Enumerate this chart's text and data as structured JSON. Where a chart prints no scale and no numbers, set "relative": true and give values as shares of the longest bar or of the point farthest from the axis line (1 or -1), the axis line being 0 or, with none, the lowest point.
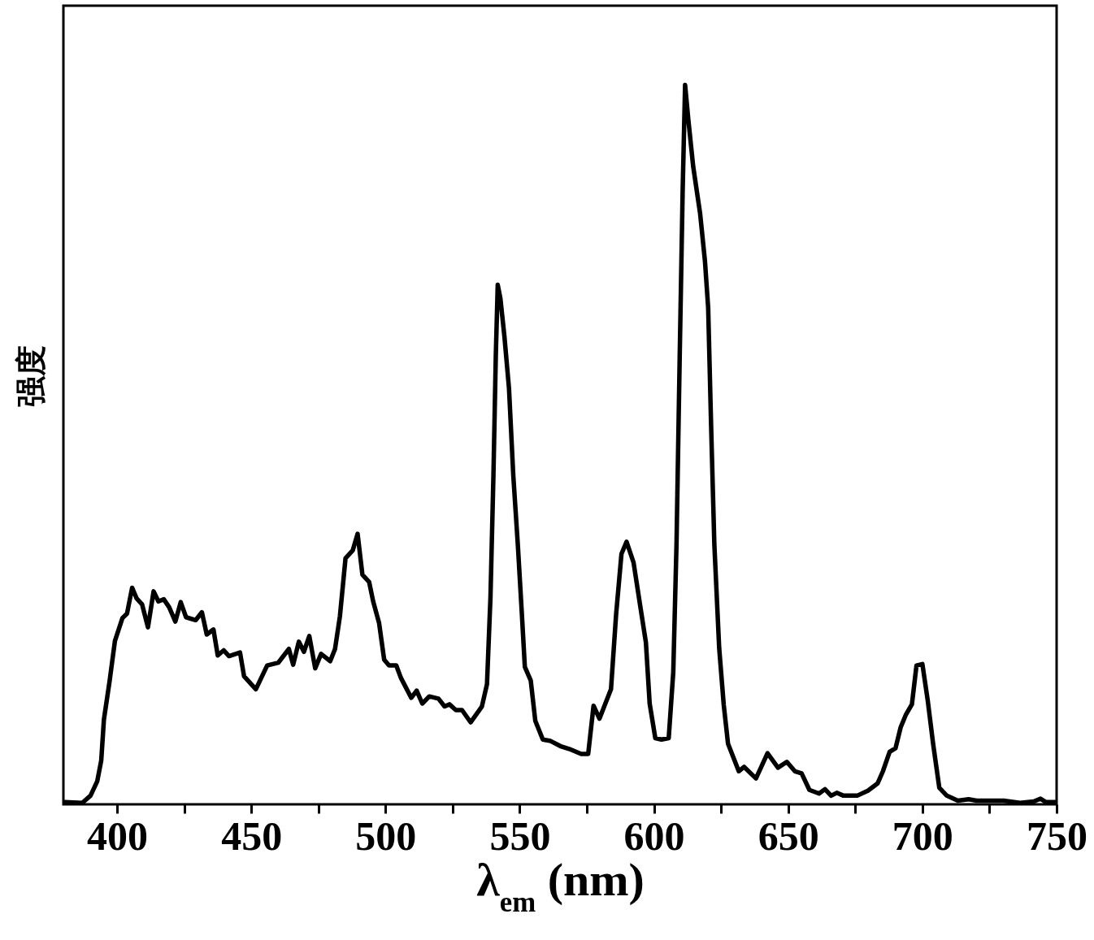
{
  "chart_data": {
    "type": "line",
    "xlabel": "λ$_{em}$ (nm)",
    "ylabel": "强度",
    "relative": true,
    "xlim": [
      380,
      750
    ],
    "xticks": [
      400,
      {
        "value": 425,
        "label": null
      },
      450,
      {
        "value": 475,
        "label": null
      },
      500,
      {
        "value": 525,
        "label": null
      },
      550,
      {
        "value": 575,
        "label": null
      },
      600,
      {
        "value": 625,
        "label": null
      },
      650,
      {
        "value": 675,
        "label": null
      },
      700,
      {
        "value": 725,
        "label": null
      },
      750
    ],
    "x": [
      380.5,
      387.0,
      390.1,
      392.6,
      394.1,
      395.1,
      397.2,
      399.2,
      402.0,
      403.7,
      405.6,
      407.3,
      409.3,
      411.5,
      413.6,
      415.4,
      417.4,
      419.4,
      421.7,
      423.7,
      425.7,
      429.3,
      431.6,
      433.4,
      435.9,
      437.5,
      439.7,
      441.7,
      445.8,
      447.3,
      451.7,
      455.9,
      460.1,
      464.0,
      465.6,
      467.7,
      469.6,
      471.6,
      473.8,
      476.0,
      479.4,
      481.2,
      483.0,
      485.1,
      487.8,
      489.6,
      491.4,
      493.9,
      495.4,
      497.6,
      499.5,
      501.3,
      504.0,
      505.7,
      509.6,
      511.6,
      513.7,
      516.3,
      519.7,
      522.0,
      523.8,
      526.2,
      528.5,
      531.7,
      535.9,
      537.8,
      539.1,
      540.2,
      541.1,
      541.8,
      542.8,
      544.3,
      546.0,
      547.6,
      549.3,
      550.8,
      551.9,
      554.1,
      555.8,
      558.6,
      561.5,
      565.1,
      568.4,
      572.9,
      575.5,
      577.5,
      579.7,
      584.0,
      585.9,
      587.9,
      589.8,
      592.4,
      595.0,
      597.0,
      598.4,
      600.5,
      602.8,
      605.5,
      607.2,
      608.4,
      609.6,
      610.7,
      611.6,
      612.8,
      614.6,
      617.2,
      619.0,
      620.2,
      621.3,
      622.5,
      624.3,
      626.0,
      627.6,
      631.6,
      633.6,
      638.0,
      642.3,
      646.2,
      649.5,
      652.5,
      655.0,
      657.9,
      661.5,
      663.7,
      666.0,
      668.1,
      670.6,
      675.7,
      679.7,
      683.3,
      685.3,
      687.8,
      690.0,
      691.9,
      693.9,
      696.1,
      697.8,
      700.0,
      702.0,
      704.0,
      706.3,
      709.1,
      713.2,
      717.2,
      720.2,
      724.3,
      730.3,
      736.4,
      741.5,
      744.0,
      746.0,
      749.4
    ],
    "series": [
      {
        "color": "#000000",
        "values": [
          0.003,
          0.002,
          0.012,
          0.032,
          0.061,
          0.118,
          0.171,
          0.227,
          0.259,
          0.265,
          0.301,
          0.286,
          0.278,
          0.246,
          0.296,
          0.282,
          0.285,
          0.274,
          0.254,
          0.281,
          0.26,
          0.256,
          0.267,
          0.236,
          0.243,
          0.207,
          0.214,
          0.206,
          0.211,
          0.178,
          0.16,
          0.193,
          0.197,
          0.216,
          0.194,
          0.226,
          0.212,
          0.234,
          0.189,
          0.209,
          0.199,
          0.216,
          0.261,
          0.342,
          0.353,
          0.376,
          0.319,
          0.309,
          0.282,
          0.252,
          0.201,
          0.193,
          0.193,
          0.176,
          0.148,
          0.158,
          0.14,
          0.15,
          0.147,
          0.136,
          0.139,
          0.131,
          0.131,
          0.114,
          0.136,
          0.167,
          0.288,
          0.457,
          0.626,
          0.722,
          0.703,
          0.65,
          0.578,
          0.457,
          0.36,
          0.264,
          0.191,
          0.172,
          0.116,
          0.09,
          0.088,
          0.081,
          0.077,
          0.07,
          0.07,
          0.137,
          0.119,
          0.16,
          0.264,
          0.348,
          0.365,
          0.336,
          0.273,
          0.225,
          0.14,
          0.092,
          0.09,
          0.092,
          0.184,
          0.361,
          0.624,
          0.854,
          1.0,
          0.952,
          0.887,
          0.821,
          0.755,
          0.69,
          0.525,
          0.361,
          0.217,
          0.138,
          0.084,
          0.046,
          0.052,
          0.036,
          0.071,
          0.051,
          0.059,
          0.046,
          0.043,
          0.02,
          0.015,
          0.021,
          0.012,
          0.016,
          0.012,
          0.012,
          0.019,
          0.029,
          0.046,
          0.073,
          0.078,
          0.107,
          0.125,
          0.139,
          0.193,
          0.195,
          0.144,
          0.084,
          0.023,
          0.012,
          0.005,
          0.007,
          0.005,
          0.005,
          0.005,
          0.002,
          0.004,
          0.008,
          0.003,
          0.003
        ]
      }
    ]
  }
}
